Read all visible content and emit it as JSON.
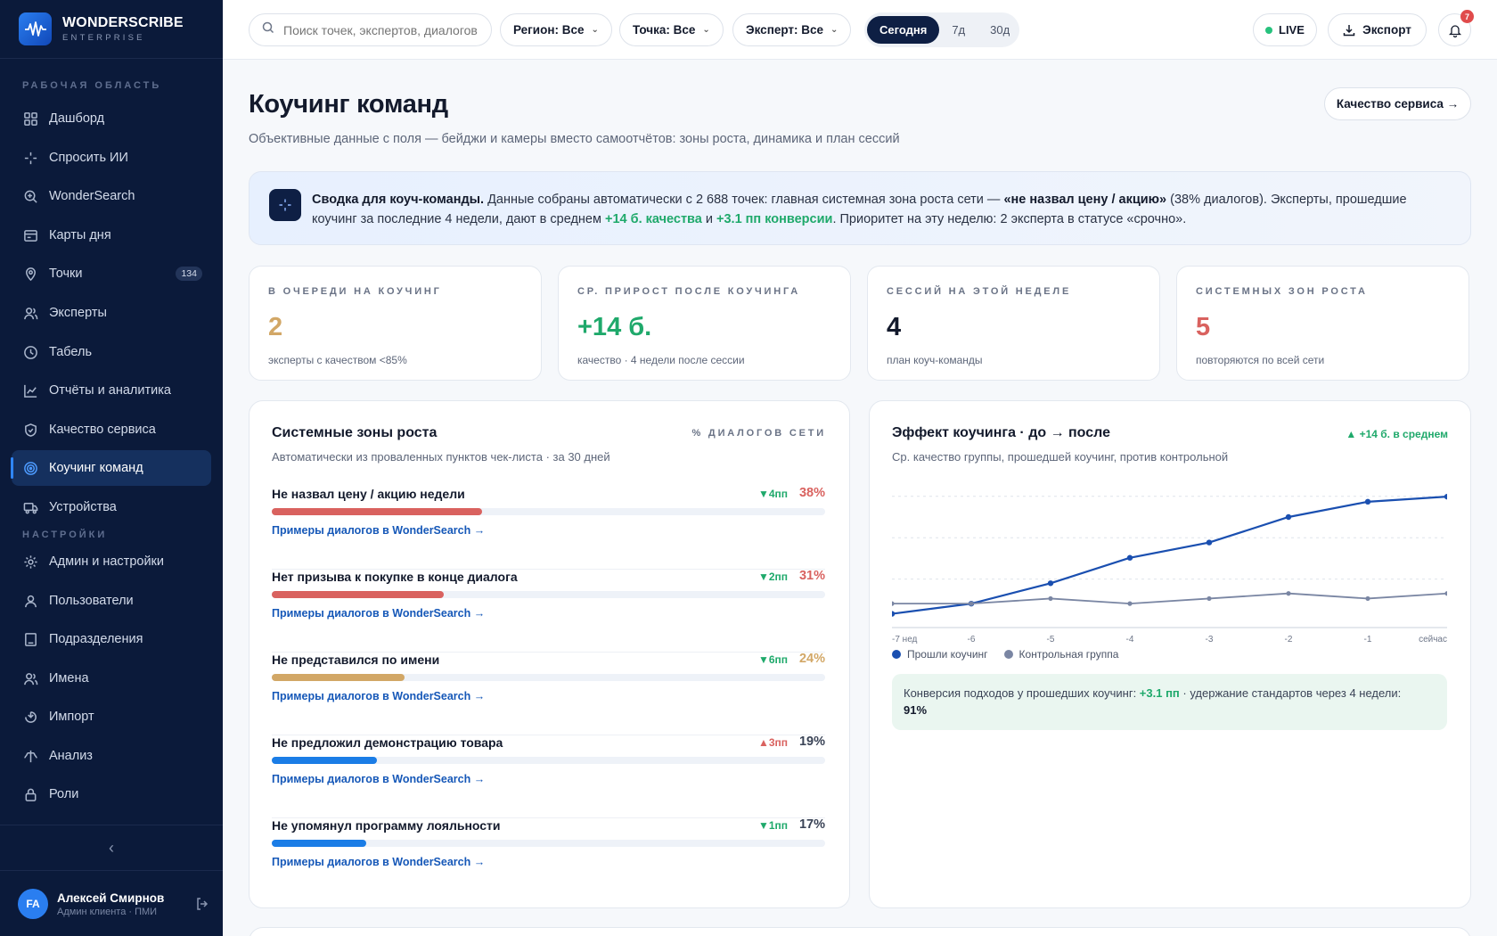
{
  "brand": {
    "name": "WONDERSCRIBE",
    "sub": "ENTERPRISE"
  },
  "sidebar": {
    "section_workspace": "РАБОЧАЯ ОБЛАСТЬ",
    "section_settings": "НАСТРОЙКИ",
    "items": [
      {
        "label": "Дашборд",
        "icon": "grid-icon"
      },
      {
        "label": "Спросить ИИ",
        "icon": "sparkle-icon"
      },
      {
        "label": "WonderSearch",
        "icon": "search-zoom-icon"
      },
      {
        "label": "Карты дня",
        "icon": "card-icon"
      },
      {
        "label": "Точки",
        "icon": "pin-icon",
        "badge": "134"
      },
      {
        "label": "Эксперты",
        "icon": "users-icon"
      },
      {
        "label": "Табель",
        "icon": "clock-icon"
      },
      {
        "label": "Отчёты и аналитика",
        "icon": "chart-icon"
      },
      {
        "label": "Качество сервиса",
        "icon": "shield-icon"
      },
      {
        "label": "Коучинг команд",
        "icon": "target-icon",
        "active": true
      },
      {
        "label": "Устройства",
        "icon": "truck-icon"
      }
    ],
    "settings_items": [
      {
        "label": "Админ и настройки",
        "icon": "gear-icon"
      },
      {
        "label": "Пользователи",
        "icon": "user-icon"
      },
      {
        "label": "Подразделения",
        "icon": "building-icon"
      },
      {
        "label": "Имена",
        "icon": "users-icon"
      },
      {
        "label": "Импорт",
        "icon": "import-icon"
      },
      {
        "label": "Анализ",
        "icon": "analysis-icon"
      },
      {
        "label": "Роли",
        "icon": "lock-icon"
      }
    ],
    "collapse_glyph": "‹",
    "user": {
      "initials": "FA",
      "name": "Алексей Смирнов",
      "role": "Админ клиента · ПМИ"
    }
  },
  "topbar": {
    "search_placeholder": "Поиск точек, экспертов, диалогов",
    "filters": [
      "Регион: Все",
      "Точка: Все",
      "Эксперт: Все"
    ],
    "periods": [
      "Сегодня",
      "7д",
      "30д"
    ],
    "active_period": "Сегодня",
    "live_label": "LIVE",
    "export_label": "Экспорт",
    "notifications_count": "7"
  },
  "page": {
    "title": "Коучинг команд",
    "subtitle": "Объективные данные с поля — бейджи и камеры вместо самоотчётов: зоны роста, динамика и план сессий",
    "quality_button": "Качество сервиса →"
  },
  "summary": {
    "lead": "Сводка для коуч-команды.",
    "text1": " Данные собраны автоматически с 2 688 точек: главная системная зона роста сети — ",
    "zone": "«не назвал цену / акцию»",
    "text2": " (38% диалогов). Эксперты, прошедшие коучинг за последние 4 недели, дают в среднем ",
    "quality": "+14 б. качества",
    "and": " и ",
    "conversion": "+3.1 пп конверсии",
    "text3": ". Приоритет на эту неделю: 2 эксперта в статусе «срочно»."
  },
  "kpis": [
    {
      "label": "В ОЧЕРЕДИ НА КОУЧИНГ",
      "value": "2",
      "sub": "эксперты с качеством <85%",
      "color": "#d2a766"
    },
    {
      "label": "СР. ПРИРОСТ ПОСЛЕ КОУЧИНГА",
      "value": "+14 б.",
      "sub": "качество · 4 недели после сессии",
      "color": "#1fa96b"
    },
    {
      "label": "СЕССИЙ НА ЭТОЙ НЕДЕЛЕ",
      "value": "4",
      "sub": "план коуч-команды",
      "color": "#131a2c"
    },
    {
      "label": "СИСТЕМНЫХ ЗОН РОСТА",
      "value": "5",
      "sub": "повторяются по всей сети",
      "color": "#d9625f"
    }
  ],
  "zones_card": {
    "title": "Системные зоны роста",
    "subtitle": "Автоматически из проваленных пунктов чек-листа · за 30 дней",
    "tag": "% ДИАЛОГОВ СЕТИ",
    "link": "Примеры диалогов в WonderSearch →",
    "items": [
      {
        "name": "Не назвал цену / акцию недели",
        "delta": "▼4пп",
        "pct": "38%",
        "value": 38,
        "color": "#d9625f",
        "delta_color": "#1fa96b"
      },
      {
        "name": "Нет призыва к покупке в конце диалога",
        "delta": "▼2пп",
        "pct": "31%",
        "value": 31,
        "color": "#d9625f",
        "delta_color": "#1fa96b"
      },
      {
        "name": "Не представился по имени",
        "delta": "▼6пп",
        "pct": "24%",
        "value": 24,
        "color": "#d2a766",
        "delta_color": "#1fa96b"
      },
      {
        "name": "Не предложил демонстрацию товара",
        "delta": "▲3пп",
        "pct": "19%",
        "value": 19,
        "color": "#1b7de6",
        "delta_color": "#d9625f"
      },
      {
        "name": "Не упомянул программу лояльности",
        "delta": "▼1пп",
        "pct": "17%",
        "value": 17,
        "color": "#1b7de6",
        "delta_color": "#1fa96b"
      }
    ]
  },
  "effect_card": {
    "title": "Эффект коучинга · до → после",
    "subtitle": "Ср. качество группы, прошедшей коучинг, против контрольной",
    "tag": "▲ +14 б. в среднем",
    "conv_text1": "Конверсия подходов у прошедших коучинг: ",
    "conv_value": "+3.1 пп",
    "conv_text2": " · удержание стандартов через 4 недели: ",
    "conv_retention": "91%"
  },
  "chart_data": {
    "type": "line",
    "x": [
      "-7 нед",
      "-6",
      "-5",
      "-4",
      "-3",
      "-2",
      "-1",
      "сейчас"
    ],
    "series": [
      {
        "name": "Прошли коучинг",
        "color": "#1a4fb0",
        "values": [
          74,
          76,
          80,
          85,
          88,
          93,
          96,
          97
        ]
      },
      {
        "name": "Контрольная группа",
        "color": "#7a86a3",
        "values": [
          76,
          76,
          77,
          76,
          77,
          78,
          77,
          78
        ]
      }
    ],
    "ylim": [
      72,
      100
    ],
    "grid": true,
    "legend": "bottom-left"
  }
}
